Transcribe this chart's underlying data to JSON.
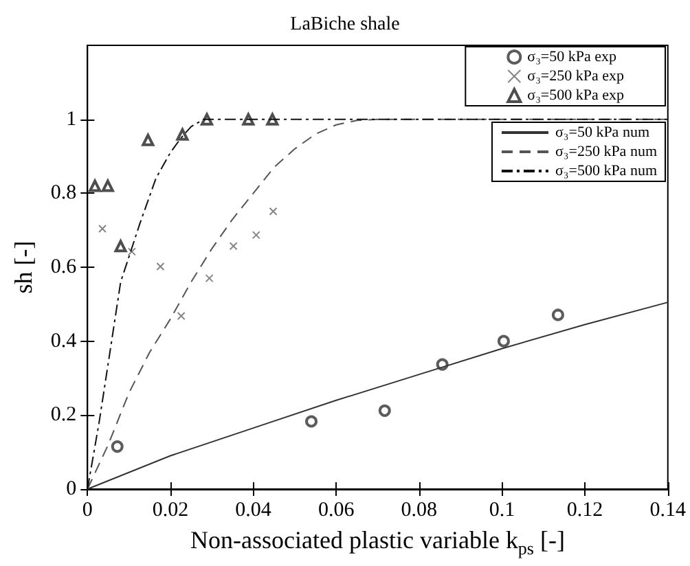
{
  "chart_data": {
    "type": "scatter",
    "title": "LaBiche shale",
    "xlabel": "Non-associated plastic variable k$_{ps}$ [-]",
    "ylabel": "sh [-]",
    "xlim": [
      0,
      0.14
    ],
    "xticks": [
      0,
      0.02,
      0.04,
      0.06,
      0.08,
      0.1,
      0.12,
      0.14
    ],
    "ylim": [
      0,
      1.2
    ],
    "yticks": [
      0,
      0.2,
      0.4,
      0.6,
      0.8,
      1
    ],
    "grid": false,
    "legend": "top right",
    "series": [
      {
        "name": "σ₃=50 kPa exp",
        "type": "scatter",
        "marker": "circle",
        "color": "#333333",
        "x": [
          0.0072,
          0.054,
          0.0717,
          0.0856,
          0.1004,
          0.1135
        ],
        "values": [
          0.115,
          0.183,
          0.212,
          0.337,
          0.4,
          0.471
        ]
      },
      {
        "name": "σ₃=250 kPa exp",
        "type": "scatter",
        "marker": "cross",
        "color": "#666666",
        "x": [
          0.0036,
          0.0107,
          0.0176,
          0.0226,
          0.0294,
          0.0352,
          0.0407,
          0.0448
        ],
        "values": [
          0.704,
          0.642,
          0.602,
          0.468,
          0.57,
          0.657,
          0.687,
          0.751
        ]
      },
      {
        "name": "σ₃=500 kPa exp",
        "type": "scatter",
        "marker": "triangle",
        "color": "#222222",
        "x": [
          0.0018,
          0.0049,
          0.008,
          0.0146,
          0.0229,
          0.0288,
          0.0388,
          0.0446
        ],
        "values": [
          0.82,
          0.82,
          0.657,
          0.944,
          0.959,
          1.0,
          1.0,
          1.0
        ]
      },
      {
        "name": "σ₃=50 kPa num",
        "type": "line",
        "marker": "none",
        "line_style": "solid",
        "color": "#333333",
        "x": [
          0,
          0.02,
          0.04,
          0.06,
          0.08,
          0.1,
          0.12,
          0.14
        ],
        "values": [
          0,
          0.09,
          0.165,
          0.24,
          0.31,
          0.38,
          0.445,
          0.505
        ]
      },
      {
        "name": "σ₃=250 kPa num",
        "type": "line",
        "marker": "none",
        "line_style": "dashed",
        "color": "#555555",
        "x": [
          0,
          0.005,
          0.01,
          0.015,
          0.02,
          0.025,
          0.03,
          0.035,
          0.04,
          0.045,
          0.05,
          0.055,
          0.06,
          0.065,
          0.07,
          0.14
        ],
        "values": [
          0,
          0.12,
          0.26,
          0.37,
          0.46,
          0.56,
          0.65,
          0.73,
          0.8,
          0.87,
          0.92,
          0.96,
          0.985,
          0.997,
          1,
          1
        ]
      },
      {
        "name": "σ₃=500 kPa num",
        "type": "line",
        "marker": "none",
        "line_style": "dashdot",
        "color": "#111111",
        "x": [
          0,
          0.0028,
          0.005,
          0.008,
          0.0127,
          0.0165,
          0.02,
          0.0226,
          0.025,
          0.028,
          0.14
        ],
        "values": [
          0,
          0.18,
          0.34,
          0.56,
          0.72,
          0.84,
          0.91,
          0.95,
          0.98,
          1,
          1
        ]
      }
    ]
  }
}
